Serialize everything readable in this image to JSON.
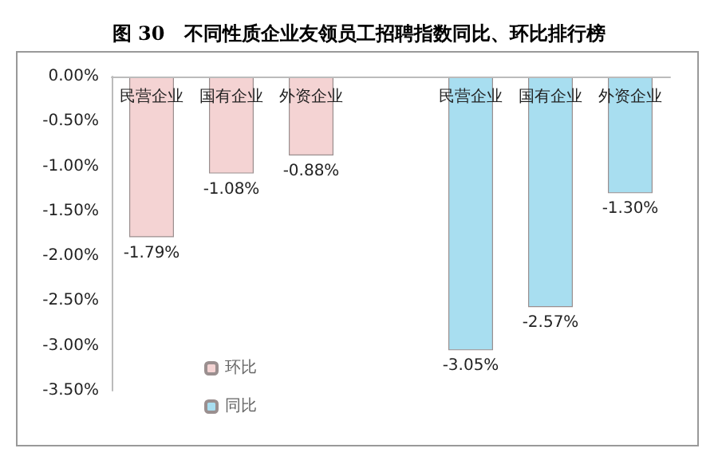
{
  "chart_data": {
    "type": "bar",
    "title": "图 30   不同性质企业友领员工招聘指数同比、环比排行榜",
    "categories": [
      "民营企业",
      "国有企业",
      "外资企业",
      null,
      "民营企业",
      "国有企业",
      "外资企业"
    ],
    "series": [
      {
        "name": "环比",
        "color": "#f4d3d3",
        "values": [
          -1.79,
          -1.08,
          -0.88,
          null,
          null,
          null,
          null
        ],
        "value_labels": [
          "-1.79%",
          "-1.08%",
          "-0.88%",
          null,
          null,
          null,
          null
        ]
      },
      {
        "name": "同比",
        "color": "#a8def0",
        "values": [
          null,
          null,
          null,
          null,
          -3.05,
          -2.57,
          -1.3
        ],
        "value_labels": [
          null,
          null,
          null,
          null,
          "-3.05%",
          "-2.57%",
          "-1.30%"
        ]
      }
    ],
    "ylim": [
      -3.5,
      0
    ],
    "yticks": [
      {
        "value": -3.5,
        "label": "-3.50%"
      },
      {
        "value": -3,
        "label": "-3.00%"
      },
      {
        "value": -2.5,
        "label": "-2.50%"
      },
      {
        "value": -2,
        "label": "-2.00%"
      },
      {
        "value": -1.5,
        "label": "-1.50%"
      },
      {
        "value": -1,
        "label": "-1.00%"
      },
      {
        "value": -0.5,
        "label": "-0.50%"
      },
      {
        "value": 0,
        "label": "0.00%"
      }
    ],
    "grid": false,
    "legend": "bottom left"
  }
}
